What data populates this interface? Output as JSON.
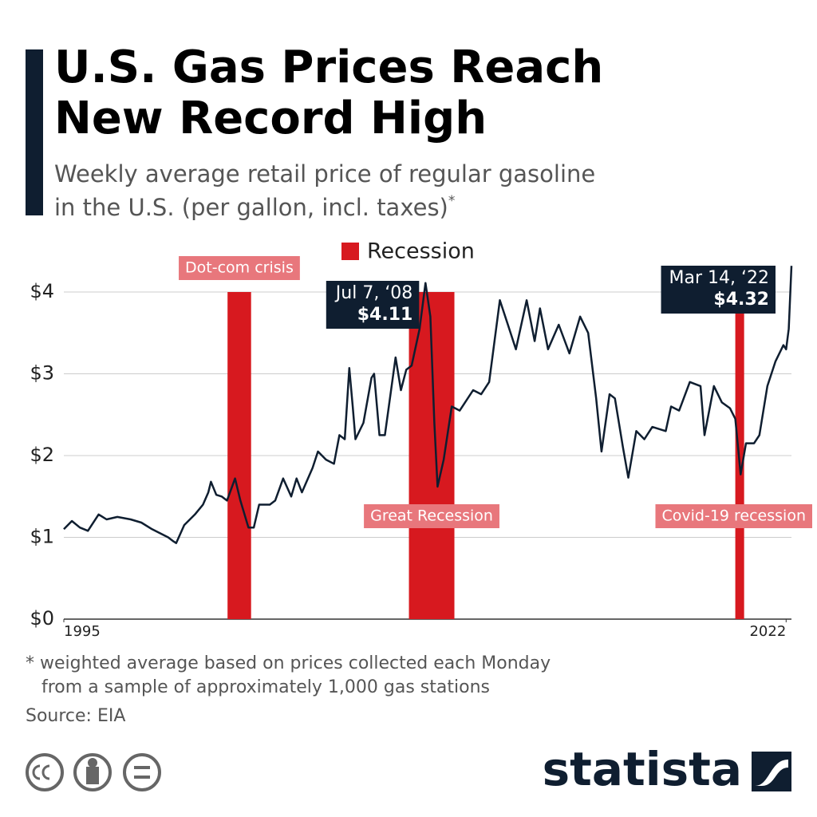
{
  "chart_data": {
    "type": "line",
    "title": [
      "U.S. Gas Prices Reach",
      "New Record High"
    ],
    "subtitle": [
      "Weekly average retail price of regular gasoline",
      "in the U.S. (per gallon, incl. taxes)"
    ],
    "subtitle_mark": "*",
    "legend": "Recession",
    "recession_color": "#d7191f",
    "recessions": [
      {
        "label": "Dot-com crisis",
        "start": 2001.12,
        "end": 2002.0
      },
      {
        "label": "Great Recession",
        "start": 2007.9,
        "end": 2009.6
      },
      {
        "label": "Covid-19 recession",
        "start": 2020.1,
        "end": 2020.43
      }
    ],
    "callouts": [
      {
        "date": "Jul 7, ‘08",
        "x": 2008.52,
        "value": 4.11,
        "value_label": "$4.11"
      },
      {
        "date": "Mar 14, ‘22",
        "x": 2022.2,
        "value": 4.32,
        "value_label": "$4.32"
      }
    ],
    "xlim": [
      1995,
      2022.2
    ],
    "xticks": [
      1995,
      2022
    ],
    "ylim": [
      0,
      4
    ],
    "yticks": [
      {
        "value": 0,
        "label": "$0"
      },
      {
        "value": 1,
        "label": "$1"
      },
      {
        "value": 2,
        "label": "$2"
      },
      {
        "value": 3,
        "label": "$3"
      },
      {
        "value": 4,
        "label": "$4"
      }
    ],
    "grid": true,
    "series": [
      {
        "name": "Regular gasoline price",
        "color": "#0f1e30",
        "x": [
          1995.0,
          1995.3,
          1995.6,
          1995.9,
          1996.3,
          1996.6,
          1997.0,
          1997.5,
          1997.9,
          1998.3,
          1998.6,
          1998.9,
          1999.1,
          1999.2,
          1999.5,
          1999.9,
          2000.2,
          2000.4,
          2000.5,
          2000.7,
          2000.9,
          2001.1,
          2001.4,
          2001.6,
          2001.9,
          2002.1,
          2002.3,
          2002.7,
          2002.9,
          2003.2,
          2003.5,
          2003.7,
          2003.9,
          2004.3,
          2004.5,
          2004.8,
          2005.1,
          2005.3,
          2005.5,
          2005.67,
          2005.8,
          2005.9,
          2006.2,
          2006.5,
          2006.6,
          2006.8,
          2007.0,
          2007.4,
          2007.6,
          2007.8,
          2008.0,
          2008.3,
          2008.52,
          2008.7,
          2008.85,
          2008.97,
          2009.2,
          2009.5,
          2009.8,
          2010.3,
          2010.6,
          2010.9,
          2011.3,
          2011.6,
          2011.9,
          2012.3,
          2012.6,
          2012.8,
          2013.1,
          2013.5,
          2013.9,
          2014.3,
          2014.6,
          2014.9,
          2015.1,
          2015.4,
          2015.6,
          2015.9,
          2016.1,
          2016.4,
          2016.7,
          2017.0,
          2017.5,
          2017.7,
          2018.0,
          2018.4,
          2018.8,
          2018.95,
          2019.3,
          2019.6,
          2019.9,
          2020.1,
          2020.3,
          2020.5,
          2020.8,
          2021.0,
          2021.3,
          2021.6,
          2021.9,
          2022.0,
          2022.1,
          2022.2
        ],
        "values": [
          1.1,
          1.2,
          1.12,
          1.08,
          1.28,
          1.22,
          1.25,
          1.22,
          1.18,
          1.1,
          1.05,
          1.0,
          0.95,
          0.93,
          1.15,
          1.28,
          1.4,
          1.55,
          1.68,
          1.52,
          1.5,
          1.45,
          1.72,
          1.45,
          1.12,
          1.12,
          1.4,
          1.4,
          1.45,
          1.72,
          1.5,
          1.72,
          1.55,
          1.85,
          2.05,
          1.95,
          1.9,
          2.25,
          2.2,
          3.07,
          2.6,
          2.2,
          2.4,
          2.95,
          3.0,
          2.25,
          2.25,
          3.2,
          2.8,
          3.05,
          3.1,
          3.55,
          4.11,
          3.7,
          2.4,
          1.62,
          1.95,
          2.6,
          2.55,
          2.8,
          2.75,
          2.9,
          3.9,
          3.6,
          3.3,
          3.9,
          3.4,
          3.8,
          3.3,
          3.6,
          3.25,
          3.7,
          3.5,
          2.7,
          2.05,
          2.75,
          2.7,
          2.1,
          1.73,
          2.3,
          2.2,
          2.35,
          2.3,
          2.6,
          2.55,
          2.9,
          2.85,
          2.25,
          2.85,
          2.65,
          2.58,
          2.45,
          1.77,
          2.15,
          2.15,
          2.25,
          2.85,
          3.15,
          3.35,
          3.3,
          3.55,
          4.32
        ]
      }
    ],
    "footnote": [
      "* weighted average based on prices collected each Monday",
      "from a sample of approximately 1,000 gas stations"
    ],
    "source": "Source: EIA",
    "brand": "statista"
  }
}
